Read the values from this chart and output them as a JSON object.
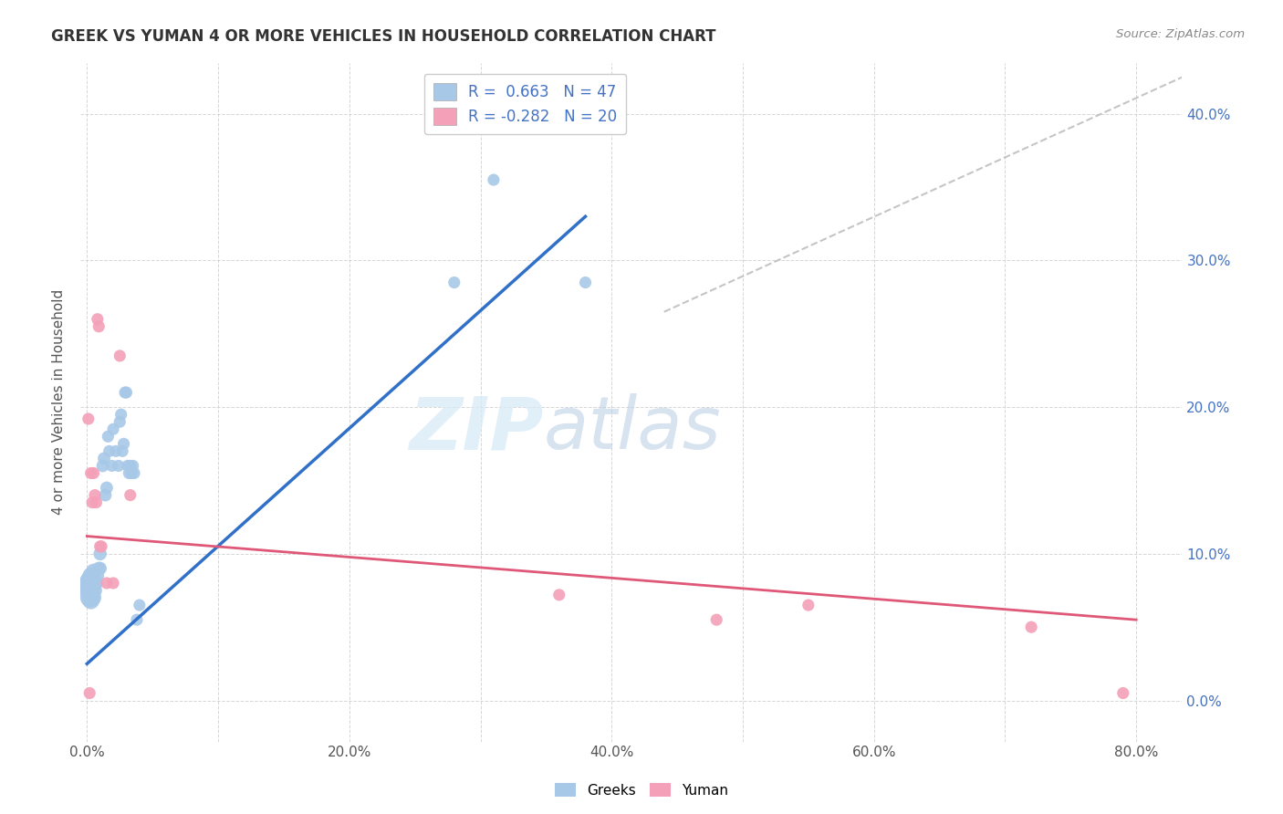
{
  "title": "GREEK VS YUMAN 4 OR MORE VEHICLES IN HOUSEHOLD CORRELATION CHART",
  "source": "Source: ZipAtlas.com",
  "ylabel": "4 or more Vehicles in Household",
  "xlim": [
    -0.005,
    0.835
  ],
  "ylim": [
    -0.028,
    0.435
  ],
  "greek_R": 0.663,
  "greek_N": 47,
  "yuman_R": -0.282,
  "yuman_N": 20,
  "greek_color": "#a8c8e8",
  "yuman_color": "#f4a0b8",
  "greek_line_color": "#3070c8",
  "yuman_line_color": "#e05878",
  "legend_greek_label": "Greeks",
  "legend_yuman_label": "Yuman",
  "watermark_zip": "ZIP",
  "watermark_atlas": "atlas",
  "greek_line_x": [
    0.0,
    0.38
  ],
  "greek_line_y": [
    0.025,
    0.33
  ],
  "yuman_line_x": [
    0.0,
    0.8
  ],
  "yuman_line_y": [
    0.112,
    0.055
  ],
  "dash_line_x": [
    0.44,
    0.835
  ],
  "dash_line_y": [
    0.265,
    0.425
  ],
  "greek_points": [
    [
      0.001,
      0.075
    ],
    [
      0.001,
      0.08
    ],
    [
      0.002,
      0.07
    ],
    [
      0.002,
      0.075
    ],
    [
      0.002,
      0.082
    ],
    [
      0.003,
      0.068
    ],
    [
      0.003,
      0.078
    ],
    [
      0.003,
      0.085
    ],
    [
      0.004,
      0.072
    ],
    [
      0.004,
      0.08
    ],
    [
      0.005,
      0.07
    ],
    [
      0.005,
      0.078
    ],
    [
      0.005,
      0.088
    ],
    [
      0.006,
      0.075
    ],
    [
      0.006,
      0.082
    ],
    [
      0.007,
      0.08
    ],
    [
      0.008,
      0.085
    ],
    [
      0.009,
      0.09
    ],
    [
      0.01,
      0.09
    ],
    [
      0.01,
      0.1
    ],
    [
      0.012,
      0.16
    ],
    [
      0.013,
      0.165
    ],
    [
      0.014,
      0.14
    ],
    [
      0.015,
      0.145
    ],
    [
      0.016,
      0.18
    ],
    [
      0.017,
      0.17
    ],
    [
      0.019,
      0.16
    ],
    [
      0.02,
      0.185
    ],
    [
      0.022,
      0.17
    ],
    [
      0.024,
      0.16
    ],
    [
      0.025,
      0.19
    ],
    [
      0.026,
      0.195
    ],
    [
      0.027,
      0.17
    ],
    [
      0.028,
      0.175
    ],
    [
      0.029,
      0.21
    ],
    [
      0.03,
      0.21
    ],
    [
      0.031,
      0.16
    ],
    [
      0.032,
      0.155
    ],
    [
      0.033,
      0.16
    ],
    [
      0.034,
      0.155
    ],
    [
      0.035,
      0.16
    ],
    [
      0.036,
      0.155
    ],
    [
      0.038,
      0.055
    ],
    [
      0.04,
      0.065
    ],
    [
      0.28,
      0.285
    ],
    [
      0.31,
      0.355
    ],
    [
      0.38,
      0.285
    ]
  ],
  "yuman_points": [
    [
      0.001,
      0.192
    ],
    [
      0.002,
      0.005
    ],
    [
      0.003,
      0.155
    ],
    [
      0.004,
      0.135
    ],
    [
      0.005,
      0.155
    ],
    [
      0.006,
      0.14
    ],
    [
      0.007,
      0.135
    ],
    [
      0.008,
      0.26
    ],
    [
      0.009,
      0.255
    ],
    [
      0.01,
      0.105
    ],
    [
      0.011,
      0.105
    ],
    [
      0.015,
      0.08
    ],
    [
      0.02,
      0.08
    ],
    [
      0.025,
      0.235
    ],
    [
      0.033,
      0.14
    ],
    [
      0.36,
      0.072
    ],
    [
      0.48,
      0.055
    ],
    [
      0.55,
      0.065
    ],
    [
      0.72,
      0.05
    ],
    [
      0.79,
      0.005
    ]
  ],
  "greek_sizes": [
    220,
    220,
    220,
    220,
    220,
    180,
    180,
    180,
    160,
    160,
    150,
    150,
    150,
    130,
    130,
    120,
    110,
    110,
    110,
    110,
    100,
    100,
    100,
    100,
    90,
    90,
    90,
    90,
    90,
    90,
    90,
    90,
    90,
    90,
    90,
    90,
    90,
    90,
    90,
    90,
    90,
    90,
    90,
    90,
    90,
    90,
    90
  ],
  "yuman_sizes": [
    90,
    90,
    90,
    90,
    90,
    90,
    90,
    90,
    90,
    90,
    90,
    90,
    90,
    90,
    90,
    90,
    90,
    90,
    90,
    90
  ]
}
